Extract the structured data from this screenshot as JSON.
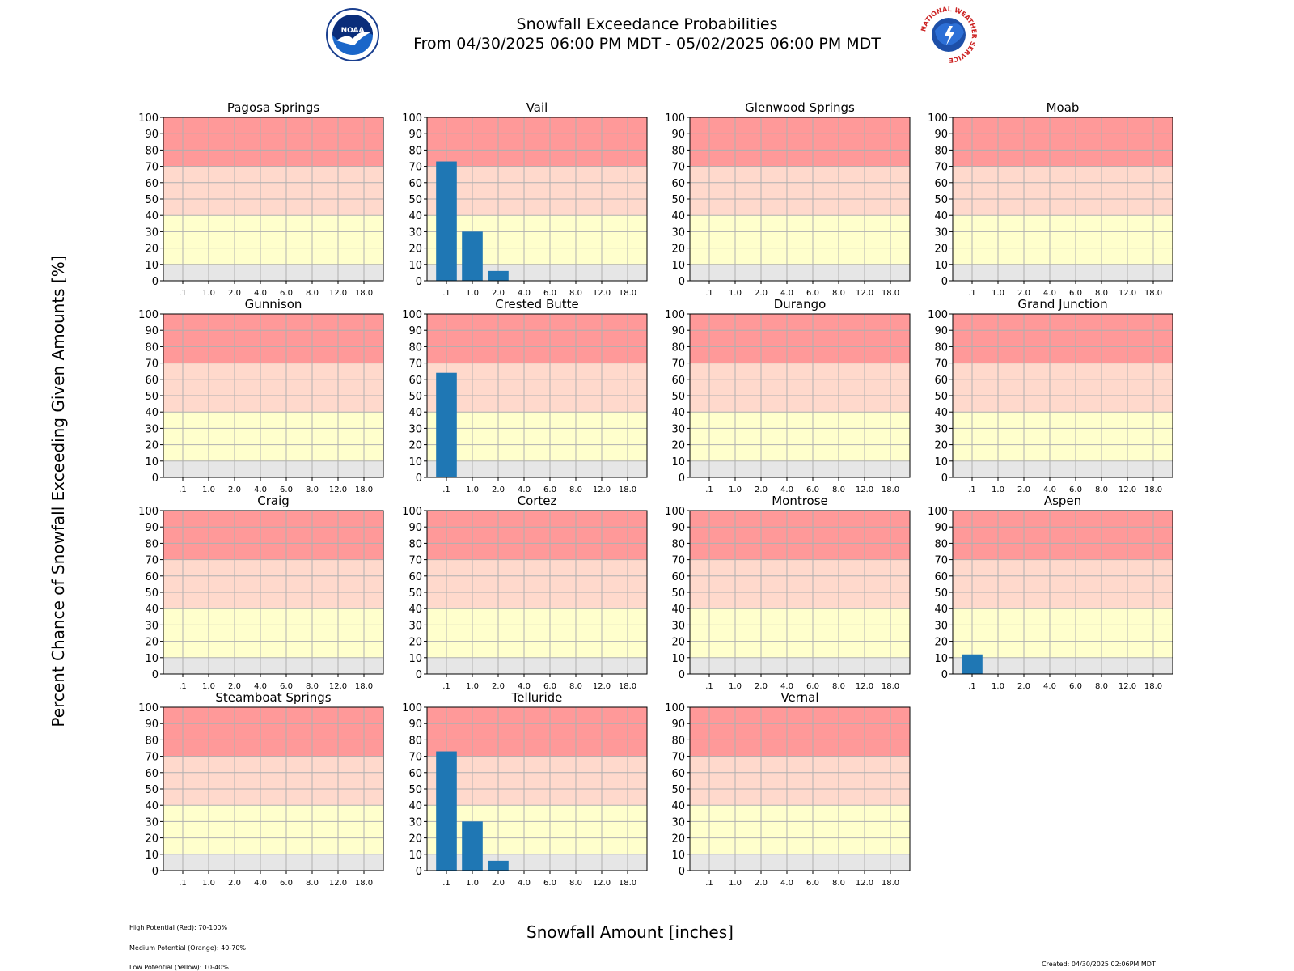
{
  "header": {
    "title_line1": "Snowfall Exceedance Probabilities",
    "title_line2": "From 04/30/2025 06:00 PM MDT - 05/02/2025 06:00 PM MDT",
    "noaa_logo_text": "NOAA",
    "nws_logo_text": "NATIONAL WEATHER SERVICE"
  },
  "axes_labels": {
    "ylabel": "Percent Chance of Snowfall Exceeding Given Amounts [%]",
    "xlabel": "Snowfall Amount [inches]"
  },
  "footer": {
    "notes": [
      "High Potential (Red): 70-100%",
      "Medium Potential (Orange): 40-70%",
      "Low Potential (Yellow): 10-40%"
    ],
    "created": "Created: 04/30/2025 02:06PM MDT"
  },
  "colors": {
    "band_high": "#ff9999",
    "band_medium": "#ffd9cc",
    "band_low": "#ffffcc",
    "band_minimal": "#e6e6e6",
    "bar": "#1f77b4",
    "grid": "#b0b0b0"
  },
  "chart_data": {
    "type": "bar",
    "categories": [
      ".1",
      "1.0",
      "2.0",
      "4.0",
      "6.0",
      "8.0",
      "12.0",
      "18.0"
    ],
    "ylim": [
      0,
      100
    ],
    "yticks": [
      0,
      10,
      20,
      30,
      40,
      50,
      60,
      70,
      80,
      90,
      100
    ],
    "grid": true,
    "bands": [
      {
        "from": 70,
        "to": 100,
        "color": "#ff9999"
      },
      {
        "from": 40,
        "to": 70,
        "color": "#ffd9cc"
      },
      {
        "from": 10,
        "to": 40,
        "color": "#ffffcc"
      },
      {
        "from": 0,
        "to": 10,
        "color": "#e6e6e6"
      }
    ],
    "panels": [
      {
        "name": "Pagosa Springs",
        "values": [
          0,
          0,
          0,
          0,
          0,
          0,
          0,
          0
        ]
      },
      {
        "name": "Vail",
        "values": [
          73,
          30,
          6,
          0,
          0,
          0,
          0,
          0
        ]
      },
      {
        "name": "Glenwood Springs",
        "values": [
          0,
          0,
          0,
          0,
          0,
          0,
          0,
          0
        ]
      },
      {
        "name": "Moab",
        "values": [
          0,
          0,
          0,
          0,
          0,
          0,
          0,
          0
        ]
      },
      {
        "name": "Gunnison",
        "values": [
          0,
          0,
          0,
          0,
          0,
          0,
          0,
          0
        ]
      },
      {
        "name": "Crested Butte",
        "values": [
          64,
          0,
          0,
          0,
          0,
          0,
          0,
          0
        ]
      },
      {
        "name": "Durango",
        "values": [
          0,
          0,
          0,
          0,
          0,
          0,
          0,
          0
        ]
      },
      {
        "name": "Grand Junction",
        "values": [
          0,
          0,
          0,
          0,
          0,
          0,
          0,
          0
        ]
      },
      {
        "name": "Craig",
        "values": [
          0,
          0,
          0,
          0,
          0,
          0,
          0,
          0
        ]
      },
      {
        "name": "Cortez",
        "values": [
          0,
          0,
          0,
          0,
          0,
          0,
          0,
          0
        ]
      },
      {
        "name": "Montrose",
        "values": [
          0,
          0,
          0,
          0,
          0,
          0,
          0,
          0
        ]
      },
      {
        "name": "Aspen",
        "values": [
          12,
          0,
          0,
          0,
          0,
          0,
          0,
          0
        ]
      },
      {
        "name": "Steamboat Springs",
        "values": [
          0,
          0,
          0,
          0,
          0,
          0,
          0,
          0
        ]
      },
      {
        "name": "Telluride",
        "values": [
          73,
          30,
          6,
          0,
          0,
          0,
          0,
          0
        ]
      },
      {
        "name": "Vernal",
        "values": [
          0,
          0,
          0,
          0,
          0,
          0,
          0,
          0
        ]
      }
    ]
  }
}
